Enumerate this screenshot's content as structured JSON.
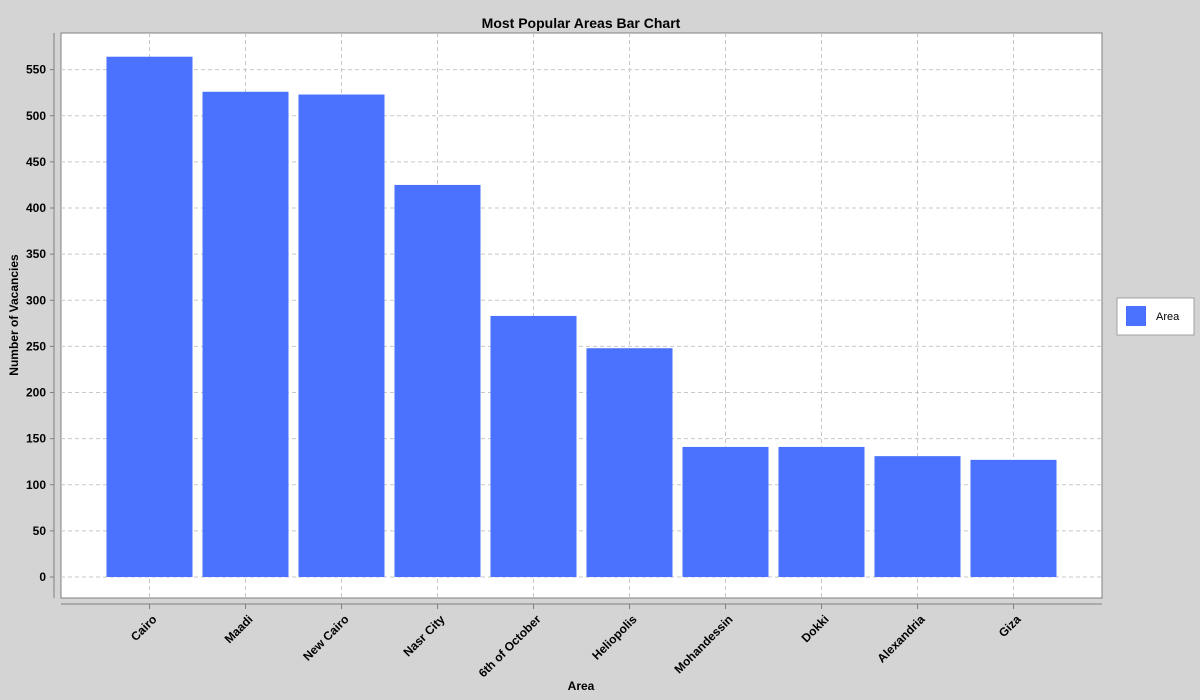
{
  "chart_data": {
    "type": "bar",
    "title": "Most Popular Areas Bar Chart",
    "xlabel": "Area",
    "ylabel": "Number of Vacancies",
    "categories": [
      "Cairo",
      "Maadi",
      "New Cairo",
      "Nasr City",
      "6th of October",
      "Heliopolis",
      "Mohandessin",
      "Dokki",
      "Alexandria",
      "Giza"
    ],
    "series": [
      {
        "name": "Area",
        "values": [
          564,
          526,
          523,
          425,
          283,
          248,
          141,
          141,
          131,
          127
        ]
      }
    ],
    "ylim": [
      0,
      600
    ],
    "yticks": [
      0,
      50,
      100,
      150,
      200,
      250,
      300,
      350,
      400,
      450,
      500,
      550
    ],
    "grid": true,
    "legend_position": "right",
    "colors": {
      "bar": "#4a72ff",
      "plot_background": "#ffffff",
      "page_background": "#d4d4d4",
      "grid": "#c8c8c8",
      "axis": "#808080"
    }
  }
}
